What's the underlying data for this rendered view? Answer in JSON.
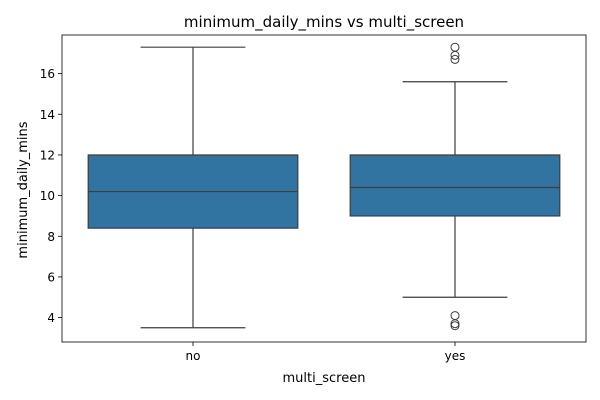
{
  "chart_data": {
    "type": "box",
    "title": "minimum_daily_mins vs multi_screen",
    "xlabel": "multi_screen",
    "ylabel": "minimum_daily_mins",
    "categories": [
      "no",
      "yes"
    ],
    "ylim": [
      2.8,
      17.9
    ],
    "yticks": [
      4,
      6,
      8,
      10,
      12,
      14,
      16
    ],
    "ytick_labels": [
      "4",
      "6",
      "8",
      "10",
      "12",
      "14",
      "16"
    ],
    "boxes": [
      {
        "category": "no",
        "whisker_low": 3.5,
        "q1": 8.4,
        "median": 10.2,
        "q3": 12.0,
        "whisker_high": 17.3,
        "outliers": []
      },
      {
        "category": "yes",
        "whisker_low": 5.0,
        "q1": 9.0,
        "median": 10.4,
        "q3": 12.0,
        "whisker_high": 15.6,
        "outliers": [
          3.6,
          3.7,
          4.1,
          16.7,
          16.9,
          17.3
        ]
      }
    ],
    "box_color": "#3274a1",
    "line_color": "#3d3d3d",
    "grid": false,
    "legend": "none"
  }
}
